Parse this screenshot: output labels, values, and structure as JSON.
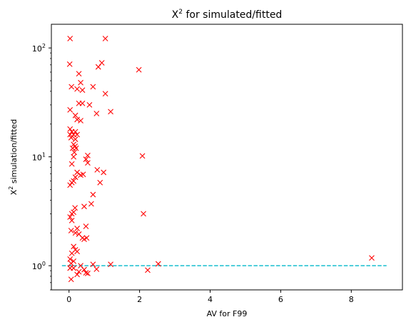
{
  "chart_data": {
    "type": "scatter",
    "title": "X² for simulated/fitted",
    "title_base": "X",
    "title_sup": "2",
    "title_rest": " for simulated/fitted",
    "xlabel": "AV for F99",
    "ylabel_base": "X",
    "ylabel_sup": "2",
    "ylabel_rest": " simulation/fitted",
    "xlim": [
      -0.5,
      9.45
    ],
    "ylim": [
      0.6,
      165
    ],
    "yscale": "log",
    "grid": false,
    "x_ticks": [
      {
        "value": 0,
        "label": "0"
      },
      {
        "value": 2,
        "label": "2"
      },
      {
        "value": 4,
        "label": "4"
      },
      {
        "value": 6,
        "label": "6"
      },
      {
        "value": 8,
        "label": "8"
      }
    ],
    "y_ticks": [
      {
        "value": 1,
        "label_base": "10",
        "label_sup": "0"
      },
      {
        "value": 10,
        "label_base": "10",
        "label_sup": "1"
      },
      {
        "value": 100,
        "label_base": "10",
        "label_sup": "2"
      }
    ],
    "reference_line": {
      "y": 1.0,
      "x_start": -0.2,
      "x_end": 9.0,
      "color": "#17becf",
      "style": "dashed"
    },
    "marker_color": "#ff0000",
    "marker": "x",
    "series": [
      {
        "points": [
          [
            0.03,
            122
          ],
          [
            1.03,
            122
          ],
          [
            0.02,
            71
          ],
          [
            0.93,
            73
          ],
          [
            0.83,
            67
          ],
          [
            1.98,
            63
          ],
          [
            0.28,
            58
          ],
          [
            0.07,
            44
          ],
          [
            0.68,
            44
          ],
          [
            0.33,
            48
          ],
          [
            0.23,
            42
          ],
          [
            0.38,
            41
          ],
          [
            1.03,
            38
          ],
          [
            0.28,
            31
          ],
          [
            0.38,
            31
          ],
          [
            0.58,
            30
          ],
          [
            0.03,
            27
          ],
          [
            1.18,
            26
          ],
          [
            0.78,
            25
          ],
          [
            0.18,
            24
          ],
          [
            0.23,
            22
          ],
          [
            0.33,
            21.5
          ],
          [
            0.03,
            18
          ],
          [
            0.08,
            17
          ],
          [
            0.18,
            17
          ],
          [
            0.03,
            16
          ],
          [
            0.13,
            16
          ],
          [
            0.23,
            16
          ],
          [
            0.06,
            15
          ],
          [
            0.18,
            14.5
          ],
          [
            0.13,
            13
          ],
          [
            0.17,
            12.5
          ],
          [
            0.1,
            12
          ],
          [
            0.2,
            12
          ],
          [
            0.15,
            11
          ],
          [
            0.13,
            10
          ],
          [
            2.08,
            10.2
          ],
          [
            0.53,
            10.3
          ],
          [
            0.48,
            9.5
          ],
          [
            0.53,
            8.8
          ],
          [
            0.08,
            8.6
          ],
          [
            0.23,
            7.2
          ],
          [
            0.33,
            6.8
          ],
          [
            0.4,
            6.9
          ],
          [
            0.8,
            7.6
          ],
          [
            0.98,
            7.2
          ],
          [
            0.18,
            6.5
          ],
          [
            0.13,
            6.0
          ],
          [
            0.08,
            5.8
          ],
          [
            0.03,
            5.5
          ],
          [
            0.88,
            5.8
          ],
          [
            0.68,
            4.5
          ],
          [
            0.63,
            3.7
          ],
          [
            0.43,
            3.5
          ],
          [
            0.17,
            3.4
          ],
          [
            0.13,
            3.1
          ],
          [
            0.08,
            3.0
          ],
          [
            0.03,
            2.8
          ],
          [
            2.11,
            3.0
          ],
          [
            0.08,
            2.6
          ],
          [
            0.23,
            2.2
          ],
          [
            0.06,
            2.1
          ],
          [
            0.18,
            2.0
          ],
          [
            0.28,
            1.95
          ],
          [
            0.48,
            2.3
          ],
          [
            0.38,
            1.8
          ],
          [
            0.43,
            1.75
          ],
          [
            0.5,
            1.8
          ],
          [
            0.13,
            1.5
          ],
          [
            0.18,
            1.4
          ],
          [
            0.23,
            1.35
          ],
          [
            0.08,
            1.3
          ],
          [
            0.03,
            1.15
          ],
          [
            0.13,
            1.1
          ],
          [
            0.06,
            1.05
          ],
          [
            0.33,
            1.0
          ],
          [
            0.68,
            1.03
          ],
          [
            1.18,
            1.03
          ],
          [
            8.58,
            1.18
          ],
          [
            2.53,
            1.04
          ],
          [
            0.03,
            0.95
          ],
          [
            0.28,
            0.88
          ],
          [
            0.43,
            0.92
          ],
          [
            0.13,
            0.95
          ],
          [
            0.78,
            0.93
          ],
          [
            0.23,
            0.83
          ],
          [
            0.48,
            0.86
          ],
          [
            0.53,
            0.85
          ],
          [
            2.23,
            0.91
          ],
          [
            0.06,
            0.75
          ]
        ]
      }
    ]
  }
}
